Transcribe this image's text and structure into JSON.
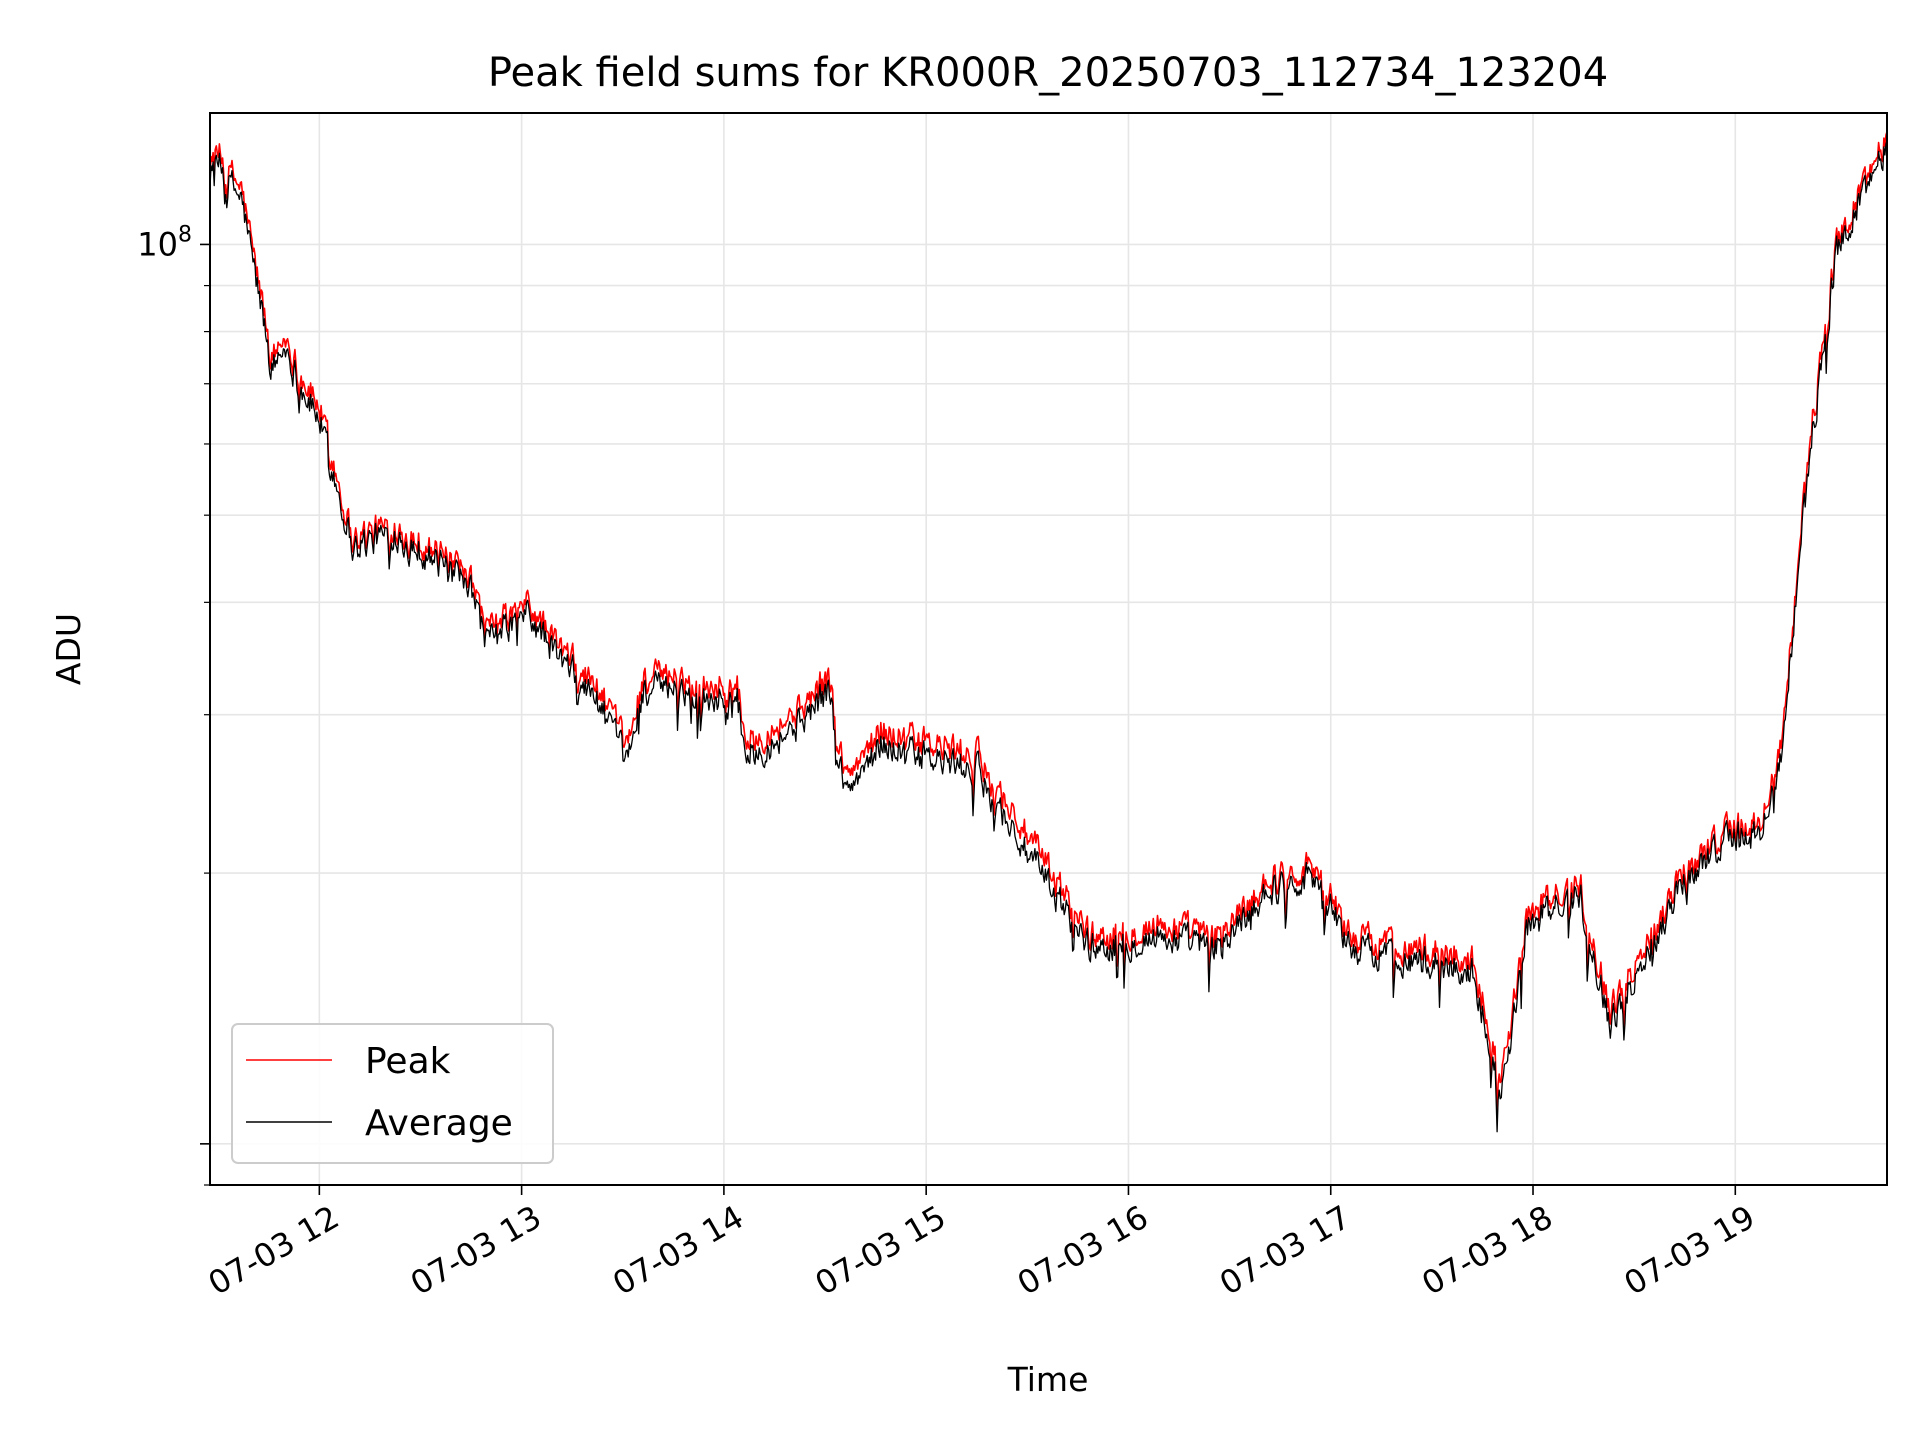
{
  "chart_data": {
    "type": "line",
    "title": "Peak field sums for KR000R_20250703_112734_123204",
    "xlabel": "Time",
    "ylabel": "ADU",
    "y_scale": "log",
    "y_major_tick": {
      "value": 100000000,
      "label_base": "10",
      "label_exp": "8"
    },
    "ylim": [
      9000000,
      140000000
    ],
    "xlim": [
      "2025-07-03 11:27:34",
      "2025-07-03 19:45:00"
    ],
    "x_ticks": [
      "07-03 12",
      "07-03 13",
      "07-03 14",
      "07-03 15",
      "07-03 16",
      "07-03 17",
      "07-03 18",
      "07-03 19"
    ],
    "x_tick_times": [
      "2025-07-03 12:00",
      "2025-07-03 13:00",
      "2025-07-03 14:00",
      "2025-07-03 15:00",
      "2025-07-03 16:00",
      "2025-07-03 17:00",
      "2025-07-03 18:00",
      "2025-07-03 19:00"
    ],
    "grid": true,
    "legend_position": "lower-left",
    "series": [
      {
        "name": "Peak",
        "color": "#ff0000",
        "x": [
          "2025-07-03 11:27",
          "2025-07-03 11:37",
          "2025-07-03 11:46",
          "2025-07-03 11:50",
          "2025-07-03 11:54",
          "2025-07-03 12:00",
          "2025-07-03 12:10",
          "2025-07-03 12:22",
          "2025-07-03 12:33",
          "2025-07-03 12:45",
          "2025-07-03 12:50",
          "2025-07-03 13:01",
          "2025-07-03 13:13",
          "2025-07-03 13:23",
          "2025-07-03 13:31",
          "2025-07-03 13:36",
          "2025-07-03 13:47",
          "2025-07-03 14:04",
          "2025-07-03 14:07",
          "2025-07-03 14:21",
          "2025-07-03 14:31",
          "2025-07-03 14:36",
          "2025-07-03 14:47",
          "2025-07-03 14:57",
          "2025-07-03 15:15",
          "2025-07-03 15:30",
          "2025-07-03 15:49",
          "2025-07-03 16:09",
          "2025-07-03 16:27",
          "2025-07-03 16:40",
          "2025-07-03 16:55",
          "2025-07-03 17:06",
          "2025-07-03 17:26",
          "2025-07-03 17:42",
          "2025-07-03 17:51",
          "2025-07-03 17:58",
          "2025-07-03 18:14",
          "2025-07-03 18:23",
          "2025-07-03 18:44",
          "2025-07-03 18:58",
          "2025-07-03 19:07",
          "2025-07-03 19:14",
          "2025-07-03 19:18",
          "2025-07-03 19:23",
          "2025-07-03 19:30",
          "2025-07-03 19:45"
        ],
        "values": [
          131000000,
          115000000,
          75000000,
          79000000,
          72000000,
          66000000,
          47000000,
          49000000,
          46000000,
          42000000,
          37000000,
          40000000,
          35000000,
          32000000,
          27500000,
          33000000,
          33000000,
          32000000,
          28000000,
          30000000,
          33000000,
          25500000,
          29000000,
          28000000,
          27000000,
          22000000,
          17000000,
          17500000,
          17000000,
          19500000,
          20500000,
          17000000,
          16500000,
          16000000,
          12000000,
          18000000,
          19500000,
          14000000,
          20000000,
          22500000,
          22500000,
          28000000,
          42000000,
          64000000,
          100000000,
          133000000
        ]
      },
      {
        "name": "Average",
        "color": "#000000",
        "x": [
          "2025-07-03 11:27",
          "2025-07-03 11:37",
          "2025-07-03 11:46",
          "2025-07-03 11:50",
          "2025-07-03 11:54",
          "2025-07-03 12:00",
          "2025-07-03 12:10",
          "2025-07-03 12:22",
          "2025-07-03 12:33",
          "2025-07-03 12:45",
          "2025-07-03 12:50",
          "2025-07-03 13:01",
          "2025-07-03 13:13",
          "2025-07-03 13:23",
          "2025-07-03 13:31",
          "2025-07-03 13:36",
          "2025-07-03 13:47",
          "2025-07-03 14:04",
          "2025-07-03 14:07",
          "2025-07-03 14:21",
          "2025-07-03 14:31",
          "2025-07-03 14:36",
          "2025-07-03 14:47",
          "2025-07-03 14:57",
          "2025-07-03 15:15",
          "2025-07-03 15:30",
          "2025-07-03 15:49",
          "2025-07-03 16:09",
          "2025-07-03 16:27",
          "2025-07-03 16:40",
          "2025-07-03 16:55",
          "2025-07-03 17:06",
          "2025-07-03 17:26",
          "2025-07-03 17:42",
          "2025-07-03 17:51",
          "2025-07-03 17:58",
          "2025-07-03 18:14",
          "2025-07-03 18:23",
          "2025-07-03 18:44",
          "2025-07-03 18:58",
          "2025-07-03 19:07",
          "2025-07-03 19:14",
          "2025-07-03 19:18",
          "2025-07-03 19:23",
          "2025-07-03 19:30",
          "2025-07-03 19:45"
        ],
        "values": [
          128000000,
          112000000,
          73000000,
          77000000,
          70000000,
          64000000,
          46000000,
          48000000,
          45000000,
          41000000,
          36000000,
          39000000,
          34000000,
          31000000,
          26500000,
          32000000,
          32000000,
          31000000,
          27000000,
          29000000,
          32000000,
          24500000,
          28000000,
          27000000,
          26000000,
          21000000,
          16500000,
          17000000,
          16500000,
          19000000,
          20000000,
          16500000,
          16000000,
          15500000,
          11500000,
          17500000,
          19000000,
          13500000,
          19500000,
          22000000,
          22000000,
          27000000,
          41000000,
          62000000,
          98000000,
          130000000
        ]
      }
    ]
  }
}
